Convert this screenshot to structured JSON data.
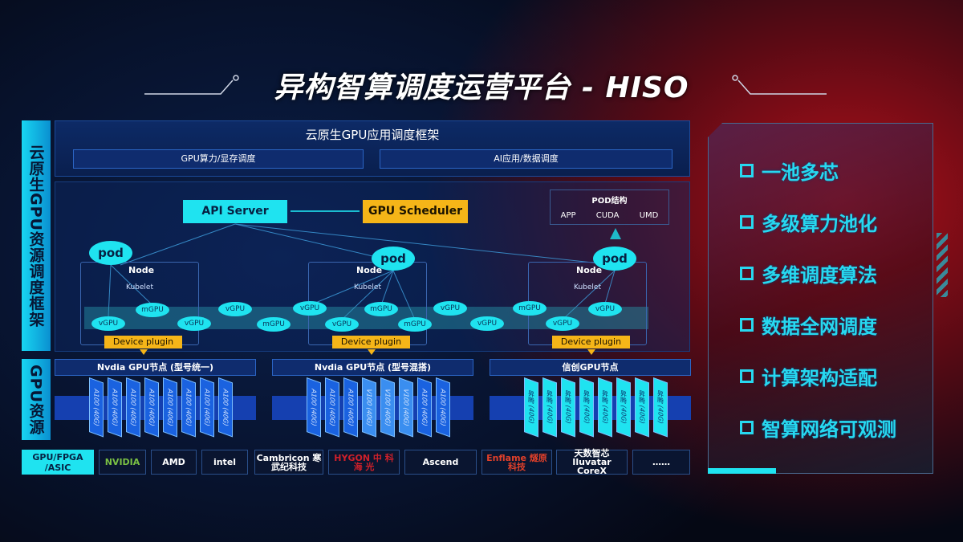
{
  "title": "异构智算调度运营平台 - HISO",
  "side_labels": {
    "framework": "云原生GPU资源调度框架",
    "resources": "GPU资源"
  },
  "framework": {
    "header": "云原生GPU应用调度框架",
    "bars": [
      "GPU算力/显存调度",
      "AI应用/数据调度"
    ],
    "api_server": "API Server",
    "gpu_scheduler": "GPU Scheduler",
    "pod_structure": {
      "title": "POD结构",
      "items": [
        "APP",
        "CUDA",
        "UMD"
      ]
    },
    "pod": "pod",
    "node": "Node",
    "kubelet": "Kubelet",
    "device_plugin": "Device plugin",
    "vgpu": "vGPU",
    "mgpu": "mGPU"
  },
  "gpu_nodes": [
    {
      "title": "Nvdia GPU节点 (型号统一)",
      "cards": [
        "A100 (40G)",
        "A100 (40G)",
        "A100 (40G)",
        "A100 (40G)",
        "A100 (40G)",
        "A100 (40G)",
        "A100 (40G)",
        "A100 (40G)"
      ]
    },
    {
      "title": "Nvdia GPU节点 (型号混搭)",
      "cards": [
        "A100 (40G)",
        "A100 (40G)",
        "A100 (40G)",
        "V100 (40G)",
        "V100 (40G)",
        "V100 (40G)",
        "A100 (40G)",
        "A100 (40G)"
      ]
    },
    {
      "title": "信创GPU节点",
      "cards": [
        "昇腾 (40G)",
        "昇腾 (40G)",
        "昇腾 (40G)",
        "昇腾 (40G)",
        "昇腾 (40G)",
        "昇腾 (40G)",
        "昇腾 (40G)",
        "昇腾 (40G)"
      ]
    }
  ],
  "vendors": {
    "label": "GPU/FPGA /ASIC",
    "items": [
      "NVIDIA",
      "AMD",
      "intel",
      "Cambricon 寒武纪科技",
      "HYGON 中 科 海 光",
      "Ascend",
      "Enflame 燧原科技",
      "天数智芯 Iluvatar CoreX",
      "……"
    ]
  },
  "features": [
    "一池多芯",
    "多级算力池化",
    "多维调度算法",
    "数据全网调度",
    "计算架构适配",
    "智算网络可观测"
  ],
  "colors": {
    "cyan": "#1fe3f0",
    "yellow": "#f5b518",
    "red": "#b0101a"
  }
}
